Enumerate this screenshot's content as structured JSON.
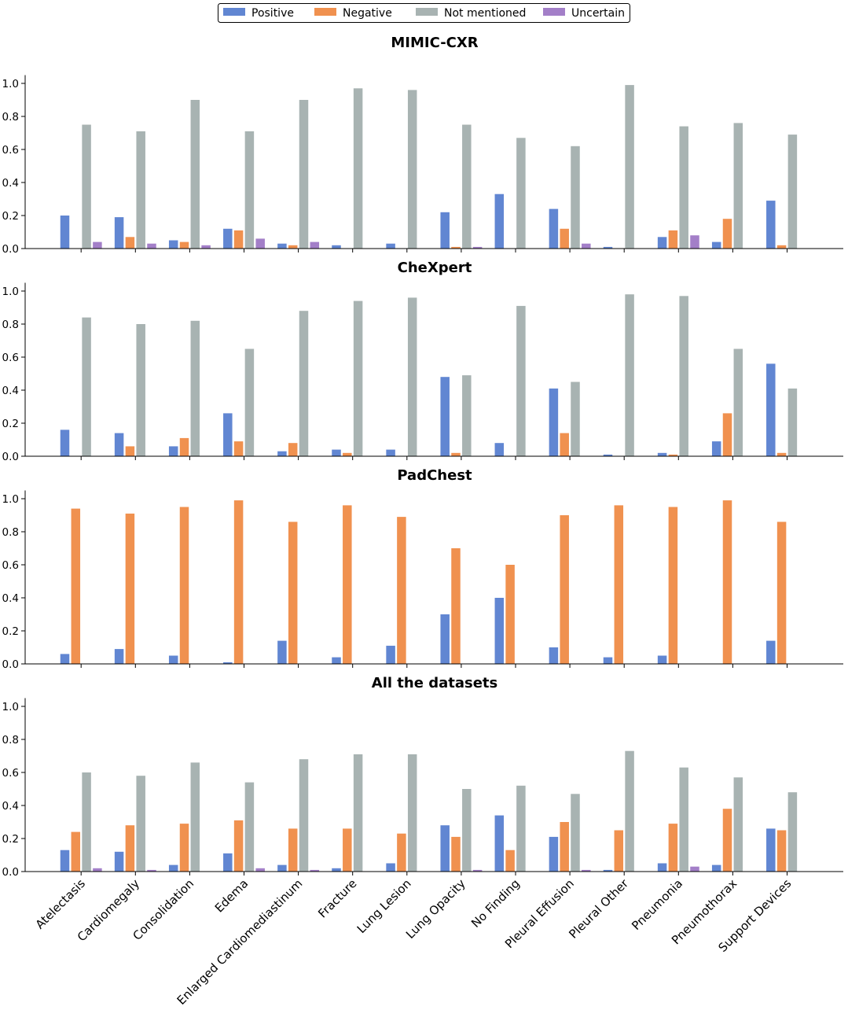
{
  "colors": {
    "Positive": "#6186d2",
    "Negative": "#f0914f",
    "Not mentioned": "#a8b3b2",
    "Uncertain": "#a37fc8"
  },
  "legend": [
    "Positive",
    "Negative",
    "Not mentioned",
    "Uncertain"
  ],
  "chart_data": [
    {
      "type": "bar",
      "title": "MIMIC-CXR",
      "ylim": [
        0,
        1.05
      ],
      "yticks": [
        "0.0",
        "0.2",
        "0.4",
        "0.6",
        "0.8",
        "1.0"
      ],
      "categories": [
        "Atelectasis",
        "Cardiomegaly",
        "Consolidation",
        "Edema",
        "Enlarged Cardiomediastinum",
        "Fracture",
        "Lung Lesion",
        "Lung Opacity",
        "No Finding",
        "Pleural Effusion",
        "Pleural Other",
        "Pneumonia",
        "Pneumothorax",
        "Support Devices"
      ],
      "series": [
        {
          "name": "Positive",
          "values": [
            0.2,
            0.19,
            0.05,
            0.12,
            0.03,
            0.02,
            0.03,
            0.22,
            0.33,
            0.24,
            0.01,
            0.07,
            0.04,
            0.29
          ]
        },
        {
          "name": "Negative",
          "values": [
            0.0,
            0.07,
            0.04,
            0.11,
            0.02,
            0.0,
            0.0,
            0.01,
            0.0,
            0.12,
            0.0,
            0.11,
            0.18,
            0.02
          ]
        },
        {
          "name": "Not mentioned",
          "values": [
            0.75,
            0.71,
            0.9,
            0.71,
            0.9,
            0.97,
            0.96,
            0.75,
            0.67,
            0.62,
            0.99,
            0.74,
            0.76,
            0.69
          ]
        },
        {
          "name": "Uncertain",
          "values": [
            0.04,
            0.03,
            0.02,
            0.06,
            0.04,
            0.0,
            0.0,
            0.01,
            0.0,
            0.03,
            0.0,
            0.08,
            0.0,
            0.0
          ]
        }
      ]
    },
    {
      "type": "bar",
      "title": "CheXpert",
      "ylim": [
        0,
        1.05
      ],
      "yticks": [
        "0.0",
        "0.2",
        "0.4",
        "0.6",
        "0.8",
        "1.0"
      ],
      "categories": [
        "Atelectasis",
        "Cardiomegaly",
        "Consolidation",
        "Edema",
        "Enlarged Cardiomediastinum",
        "Fracture",
        "Lung Lesion",
        "Lung Opacity",
        "No Finding",
        "Pleural Effusion",
        "Pleural Other",
        "Pneumonia",
        "Pneumothorax",
        "Support Devices"
      ],
      "series": [
        {
          "name": "Positive",
          "values": [
            0.16,
            0.14,
            0.06,
            0.26,
            0.03,
            0.04,
            0.04,
            0.48,
            0.08,
            0.41,
            0.01,
            0.02,
            0.09,
            0.56
          ]
        },
        {
          "name": "Negative",
          "values": [
            0.0,
            0.06,
            0.11,
            0.09,
            0.08,
            0.02,
            0.0,
            0.02,
            0.0,
            0.14,
            0.0,
            0.01,
            0.26,
            0.02
          ]
        },
        {
          "name": "Not mentioned",
          "values": [
            0.84,
            0.8,
            0.82,
            0.65,
            0.88,
            0.94,
            0.96,
            0.49,
            0.91,
            0.45,
            0.98,
            0.97,
            0.65,
            0.41
          ]
        },
        {
          "name": "Uncertain",
          "values": [
            0,
            0,
            0,
            0,
            0,
            0,
            0,
            0,
            0,
            0,
            0,
            0,
            0,
            0
          ]
        }
      ]
    },
    {
      "type": "bar",
      "title": "PadChest",
      "ylim": [
        0,
        1.05
      ],
      "yticks": [
        "0.0",
        "0.2",
        "0.4",
        "0.6",
        "0.8",
        "1.0"
      ],
      "categories": [
        "Atelectasis",
        "Cardiomegaly",
        "Consolidation",
        "Edema",
        "Enlarged Cardiomediastinum",
        "Fracture",
        "Lung Lesion",
        "Lung Opacity",
        "No Finding",
        "Pleural Effusion",
        "Pleural Other",
        "Pneumonia",
        "Pneumothorax",
        "Support Devices"
      ],
      "series": [
        {
          "name": "Positive",
          "values": [
            0.06,
            0.09,
            0.05,
            0.01,
            0.14,
            0.04,
            0.11,
            0.3,
            0.4,
            0.1,
            0.04,
            0.05,
            0.0,
            0.14
          ]
        },
        {
          "name": "Negative",
          "values": [
            0.94,
            0.91,
            0.95,
            0.99,
            0.86,
            0.96,
            0.89,
            0.7,
            0.6,
            0.9,
            0.96,
            0.95,
            0.99,
            0.86
          ]
        },
        {
          "name": "Not mentioned",
          "values": [
            0,
            0,
            0,
            0,
            0,
            0,
            0,
            0,
            0,
            0,
            0,
            0,
            0,
            0
          ]
        },
        {
          "name": "Uncertain",
          "values": [
            0,
            0,
            0,
            0,
            0,
            0,
            0,
            0,
            0,
            0,
            0,
            0,
            0,
            0
          ]
        }
      ]
    },
    {
      "type": "bar",
      "title": "All the datasets",
      "ylim": [
        0,
        1.05
      ],
      "yticks": [
        "0.0",
        "0.2",
        "0.4",
        "0.6",
        "0.8",
        "1.0"
      ],
      "categories": [
        "Atelectasis",
        "Cardiomegaly",
        "Consolidation",
        "Edema",
        "Enlarged Cardiomediastinum",
        "Fracture",
        "Lung Lesion",
        "Lung Opacity",
        "No Finding",
        "Pleural Effusion",
        "Pleural Other",
        "Pneumonia",
        "Pneumothorax",
        "Support Devices"
      ],
      "series": [
        {
          "name": "Positive",
          "values": [
            0.13,
            0.12,
            0.04,
            0.11,
            0.04,
            0.02,
            0.05,
            0.28,
            0.34,
            0.21,
            0.01,
            0.05,
            0.04,
            0.26
          ]
        },
        {
          "name": "Negative",
          "values": [
            0.24,
            0.28,
            0.29,
            0.31,
            0.26,
            0.26,
            0.23,
            0.21,
            0.13,
            0.3,
            0.25,
            0.29,
            0.38,
            0.25
          ]
        },
        {
          "name": "Not mentioned",
          "values": [
            0.6,
            0.58,
            0.66,
            0.54,
            0.68,
            0.71,
            0.71,
            0.5,
            0.52,
            0.47,
            0.73,
            0.63,
            0.57,
            0.48
          ]
        },
        {
          "name": "Uncertain",
          "values": [
            0.02,
            0.01,
            0.0,
            0.02,
            0.01,
            0.0,
            0.0,
            0.01,
            0.0,
            0.01,
            0.0,
            0.03,
            0.0,
            0.0
          ]
        }
      ]
    }
  ]
}
